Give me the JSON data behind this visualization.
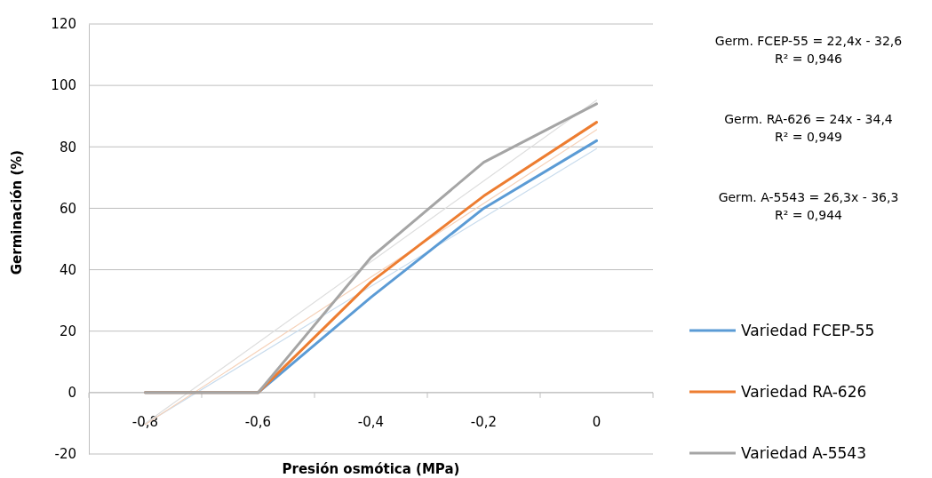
{
  "chart_data": {
    "type": "line",
    "xlabel": "Presión osmótica (MPa)",
    "ylabel": "Germinación (%)",
    "categories": [
      "-0,8",
      "-0,6",
      "-0,4",
      "-0,2",
      "0"
    ],
    "series": [
      {
        "name": "Variedad FCEP-55",
        "color": "#5b9bd5",
        "values": [
          0,
          0,
          31,
          60,
          82
        ]
      },
      {
        "name": "Variedad RA-626",
        "color": "#ed7d31",
        "values": [
          0,
          0,
          36,
          64,
          88
        ]
      },
      {
        "name": "Variedad A-5543",
        "color": "#a5a5a5",
        "values": [
          0,
          0,
          44,
          75,
          94
        ]
      },
      {
        "color": "#c9dced",
        "x": [
          "-0,8",
          "0"
        ],
        "values": [
          -10.2,
          79.4
        ]
      },
      {
        "color": "#f6d3bb",
        "x": [
          "-0,8",
          "0"
        ],
        "values": [
          -10.4,
          85.6
        ]
      },
      {
        "color": "#dedede",
        "x": [
          "-0,8",
          "0"
        ],
        "values": [
          -10,
          95.2
        ]
      }
    ],
    "ylim": [
      -20,
      120
    ],
    "yticks": [
      -20,
      0,
      20,
      40,
      60,
      80,
      100,
      120
    ],
    "grid": "y",
    "legend": "right",
    "marker": "none",
    "line_style": "solid",
    "annotations": [
      "Germ. FCEP-55 = 22,4x - 32,6\nR² = 0,946",
      "Germ. RA-626 = 24x - 34,4\nR² = 0,949",
      "Germ. A-5543 = 26,3x - 36,3\nR² = 0,944"
    ]
  }
}
